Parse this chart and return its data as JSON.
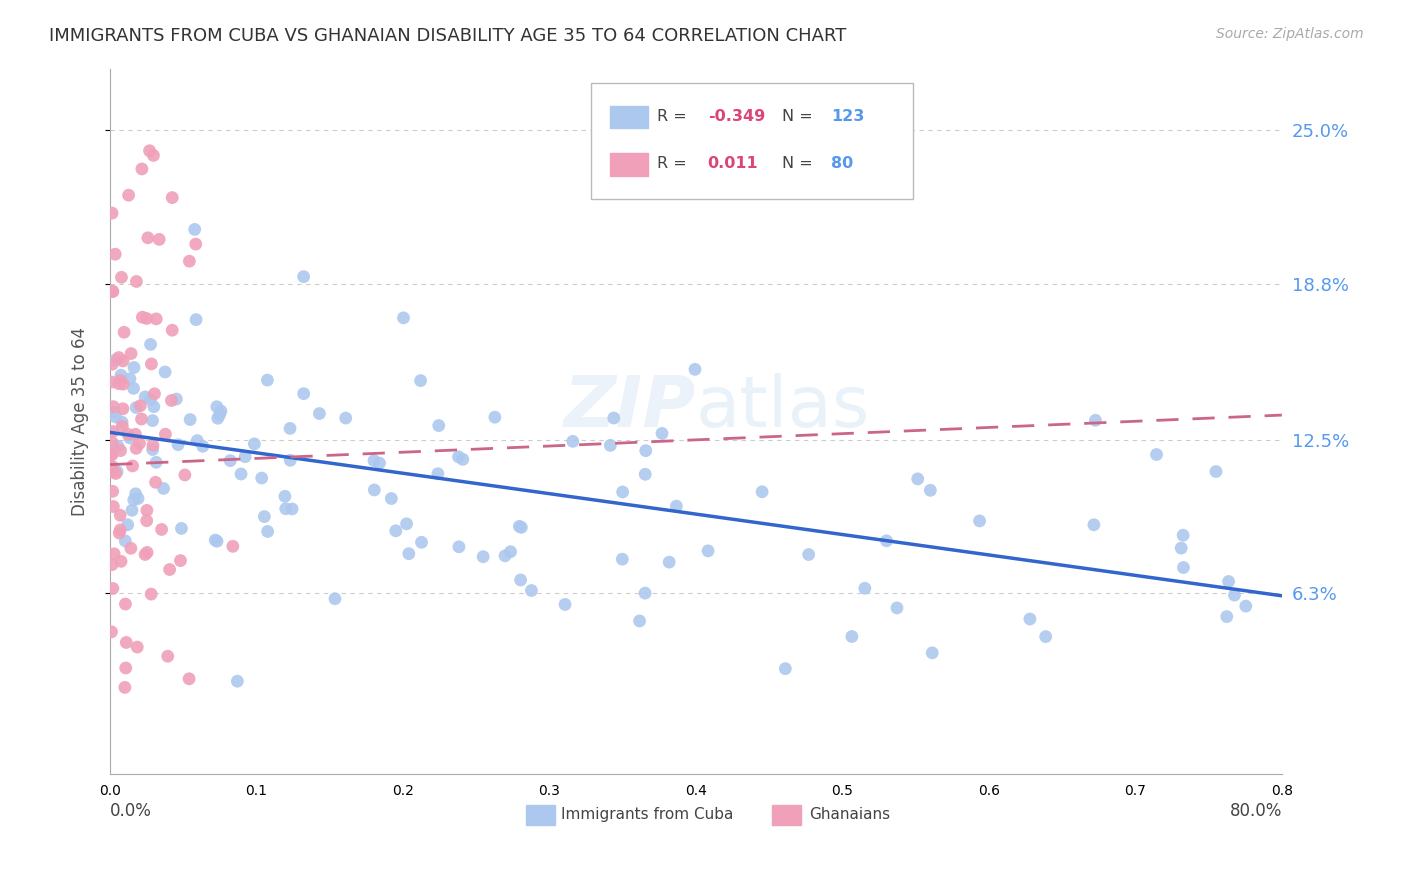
{
  "title": "IMMIGRANTS FROM CUBA VS GHANAIAN DISABILITY AGE 35 TO 64 CORRELATION CHART",
  "source": "Source: ZipAtlas.com",
  "ylabel": "Disability Age 35 to 64",
  "xlim": [
    0.0,
    0.8
  ],
  "ylim": [
    -0.01,
    0.275
  ],
  "ytick_vals": [
    0.063,
    0.125,
    0.188,
    0.25
  ],
  "ytick_labels": [
    "6.3%",
    "12.5%",
    "18.8%",
    "25.0%"
  ],
  "watermark": "ZIPatlas",
  "cuba_color": "#adc8ee",
  "ghana_color": "#f0a0b8",
  "cuba_line_color": "#3366cc",
  "ghana_line_color": "#cc6688",
  "cuba_R": -0.349,
  "cuba_N": 123,
  "ghana_R": 0.011,
  "ghana_N": 80,
  "background_color": "#ffffff",
  "grid_color": "#cccccc",
  "right_tick_color": "#5599ee",
  "legend_R_color": "#dd4477",
  "legend_N_color": "#5599ee"
}
